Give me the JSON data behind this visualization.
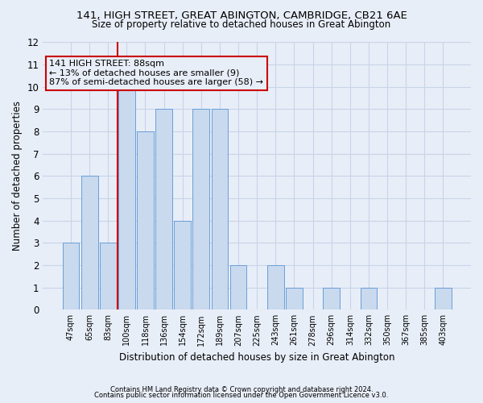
{
  "title1": "141, HIGH STREET, GREAT ABINGTON, CAMBRIDGE, CB21 6AE",
  "title2": "Size of property relative to detached houses in Great Abington",
  "xlabel": "Distribution of detached houses by size in Great Abington",
  "ylabel": "Number of detached properties",
  "footnote1": "Contains HM Land Registry data © Crown copyright and database right 2024.",
  "footnote2": "Contains public sector information licensed under the Open Government Licence v3.0.",
  "categories": [
    "47sqm",
    "65sqm",
    "83sqm",
    "100sqm",
    "118sqm",
    "136sqm",
    "154sqm",
    "172sqm",
    "189sqm",
    "207sqm",
    "225sqm",
    "243sqm",
    "261sqm",
    "278sqm",
    "296sqm",
    "314sqm",
    "332sqm",
    "350sqm",
    "367sqm",
    "385sqm",
    "403sqm"
  ],
  "values": [
    3,
    6,
    3,
    10,
    8,
    9,
    4,
    9,
    9,
    2,
    0,
    2,
    1,
    0,
    1,
    0,
    1,
    0,
    0,
    0,
    1
  ],
  "bar_color": "#c9d9ee",
  "bar_edge_color": "#6a9fd8",
  "highlight_line_color": "#cc0000",
  "annotation_line1": "141 HIGH STREET: 88sqm",
  "annotation_line2": "← 13% of detached houses are smaller (9)",
  "annotation_line3": "87% of semi-detached houses are larger (58) →",
  "annotation_box_color": "#cc0000",
  "ylim": [
    0,
    12
  ],
  "yticks": [
    0,
    1,
    2,
    3,
    4,
    5,
    6,
    7,
    8,
    9,
    10,
    11,
    12
  ],
  "grid_color": "#c8d4e8",
  "bg_color": "#e8eef8"
}
